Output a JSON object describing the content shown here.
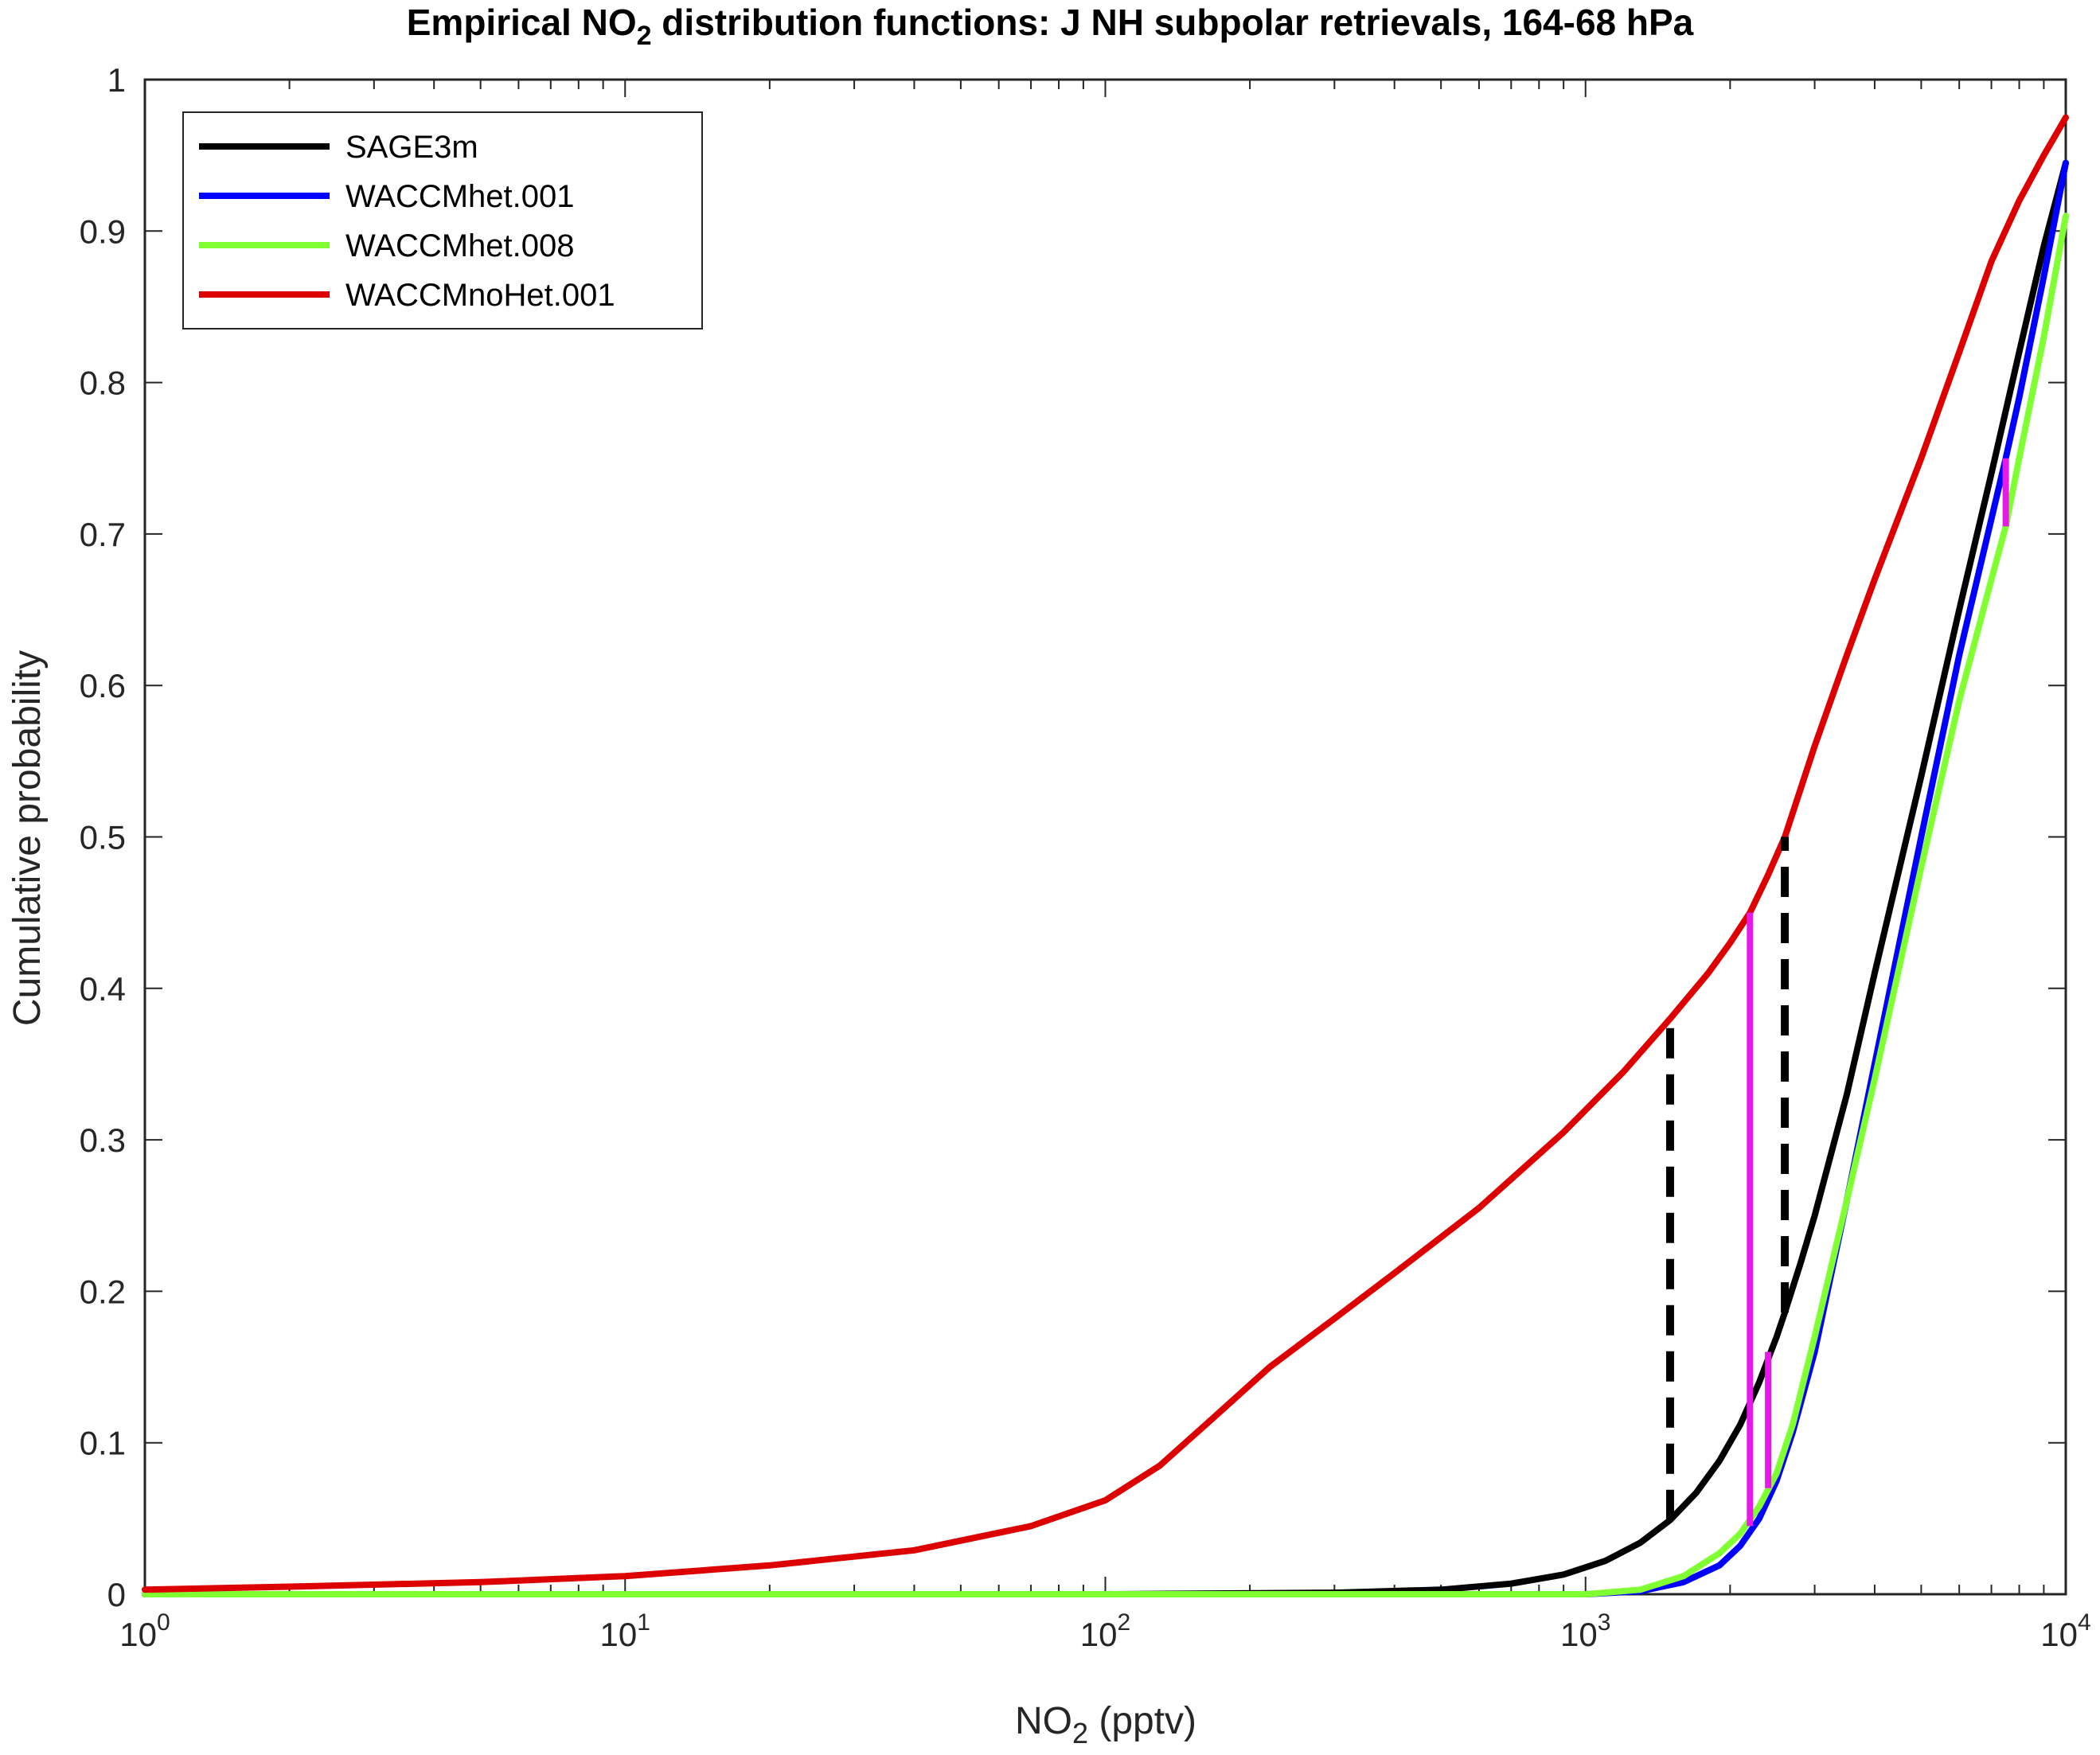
{
  "chart_data": {
    "type": "line",
    "title": {
      "pre": "Empirical NO",
      "sub": "2",
      "post": " distribution functions: J NH subpolar retrievals, 164-68 hPa"
    },
    "xlabel": {
      "pre": "NO",
      "sub": "2",
      "post": " (pptv)"
    },
    "ylabel": "Cumulative probability",
    "xscale": "log",
    "xlim": [
      1,
      10000
    ],
    "ylim": [
      0,
      1
    ],
    "x_ticks": [
      {
        "value": 1,
        "base": "10",
        "exp": "0"
      },
      {
        "value": 10,
        "base": "10",
        "exp": "1"
      },
      {
        "value": 100,
        "base": "10",
        "exp": "2"
      },
      {
        "value": 1000,
        "base": "10",
        "exp": "3"
      },
      {
        "value": 10000,
        "base": "10",
        "exp": "4"
      }
    ],
    "y_ticks": [
      {
        "value": 0,
        "label": "0"
      },
      {
        "value": 0.1,
        "label": "0.1"
      },
      {
        "value": 0.2,
        "label": "0.2"
      },
      {
        "value": 0.3,
        "label": "0.3"
      },
      {
        "value": 0.4,
        "label": "0.4"
      },
      {
        "value": 0.5,
        "label": "0.5"
      },
      {
        "value": 0.6,
        "label": "0.6"
      },
      {
        "value": 0.7,
        "label": "0.7"
      },
      {
        "value": 0.8,
        "label": "0.8"
      },
      {
        "value": 0.9,
        "label": "0.9"
      },
      {
        "value": 1,
        "label": "1"
      }
    ],
    "grid": false,
    "legend_position": "top-left",
    "series": [
      {
        "name": "SAGE3m",
        "color": "#000000",
        "points": [
          [
            1,
            0
          ],
          [
            100,
            0
          ],
          [
            300,
            0.001
          ],
          [
            500,
            0.003
          ],
          [
            700,
            0.007
          ],
          [
            900,
            0.013
          ],
          [
            1100,
            0.022
          ],
          [
            1300,
            0.034
          ],
          [
            1500,
            0.049
          ],
          [
            1700,
            0.067
          ],
          [
            1900,
            0.088
          ],
          [
            2100,
            0.112
          ],
          [
            2300,
            0.14
          ],
          [
            2500,
            0.17
          ],
          [
            2600,
            0.186
          ],
          [
            2800,
            0.218
          ],
          [
            3000,
            0.25
          ],
          [
            3500,
            0.33
          ],
          [
            4000,
            0.41
          ],
          [
            5000,
            0.54
          ],
          [
            6000,
            0.65
          ],
          [
            7000,
            0.74
          ],
          [
            8000,
            0.82
          ],
          [
            9000,
            0.89
          ],
          [
            10000,
            0.945
          ]
        ]
      },
      {
        "name": "WACCMhet.001",
        "color": "#0000ff",
        "points": [
          [
            1,
            0
          ],
          [
            500,
            0
          ],
          [
            1000,
            0
          ],
          [
            1300,
            0.002
          ],
          [
            1600,
            0.008
          ],
          [
            1900,
            0.019
          ],
          [
            2100,
            0.032
          ],
          [
            2300,
            0.05
          ],
          [
            2500,
            0.075
          ],
          [
            2700,
            0.107
          ],
          [
            3000,
            0.16
          ],
          [
            3500,
            0.26
          ],
          [
            4000,
            0.35
          ],
          [
            5000,
            0.5
          ],
          [
            6000,
            0.62
          ],
          [
            7000,
            0.71
          ],
          [
            7500,
            0.75
          ],
          [
            8000,
            0.79
          ],
          [
            9000,
            0.87
          ],
          [
            10000,
            0.945
          ]
        ]
      },
      {
        "name": "WACCMhet.008",
        "color": "#80ff33",
        "points": [
          [
            1,
            0
          ],
          [
            500,
            0
          ],
          [
            1000,
            0
          ],
          [
            1300,
            0.003
          ],
          [
            1600,
            0.012
          ],
          [
            1900,
            0.027
          ],
          [
            2100,
            0.04
          ],
          [
            2300,
            0.058
          ],
          [
            2500,
            0.08
          ],
          [
            2700,
            0.112
          ],
          [
            3000,
            0.17
          ],
          [
            3500,
            0.26
          ],
          [
            4000,
            0.34
          ],
          [
            5000,
            0.48
          ],
          [
            6000,
            0.59
          ],
          [
            7000,
            0.67
          ],
          [
            7500,
            0.705
          ],
          [
            8000,
            0.75
          ],
          [
            9000,
            0.83
          ],
          [
            10000,
            0.91
          ]
        ]
      },
      {
        "name": "WACCMnoHet.001",
        "color": "#dd0000",
        "points": [
          [
            1,
            0.003
          ],
          [
            2,
            0.005
          ],
          [
            5,
            0.008
          ],
          [
            10,
            0.012
          ],
          [
            20,
            0.019
          ],
          [
            40,
            0.029
          ],
          [
            70,
            0.045
          ],
          [
            100,
            0.062
          ],
          [
            130,
            0.085
          ],
          [
            170,
            0.118
          ],
          [
            220,
            0.15
          ],
          [
            300,
            0.182
          ],
          [
            400,
            0.212
          ],
          [
            600,
            0.255
          ],
          [
            900,
            0.305
          ],
          [
            1200,
            0.345
          ],
          [
            1500,
            0.38
          ],
          [
            1800,
            0.41
          ],
          [
            2000,
            0.43
          ],
          [
            2200,
            0.45
          ],
          [
            2400,
            0.475
          ],
          [
            2600,
            0.5
          ],
          [
            3000,
            0.56
          ],
          [
            3500,
            0.62
          ],
          [
            4000,
            0.67
          ],
          [
            5000,
            0.75
          ],
          [
            6000,
            0.82
          ],
          [
            7000,
            0.88
          ],
          [
            8000,
            0.92
          ],
          [
            9000,
            0.95
          ],
          [
            10000,
            0.975
          ]
        ]
      }
    ],
    "annotations": {
      "dashed_verticals": [
        {
          "x": 1500,
          "y0": 0.049,
          "y1": 0.38,
          "color": "#000000"
        },
        {
          "x": 2600,
          "y0": 0.186,
          "y1": 0.5,
          "color": "#000000"
        }
      ],
      "magenta_verticals": [
        {
          "x": 2200,
          "y0": 0.045,
          "y1": 0.45,
          "color": "#e61ae6"
        },
        {
          "x": 2400,
          "y0": 0.07,
          "y1": 0.16,
          "color": "#e61ae6"
        },
        {
          "x": 7500,
          "y0": 0.705,
          "y1": 0.75,
          "color": "#e61ae6"
        }
      ]
    }
  }
}
